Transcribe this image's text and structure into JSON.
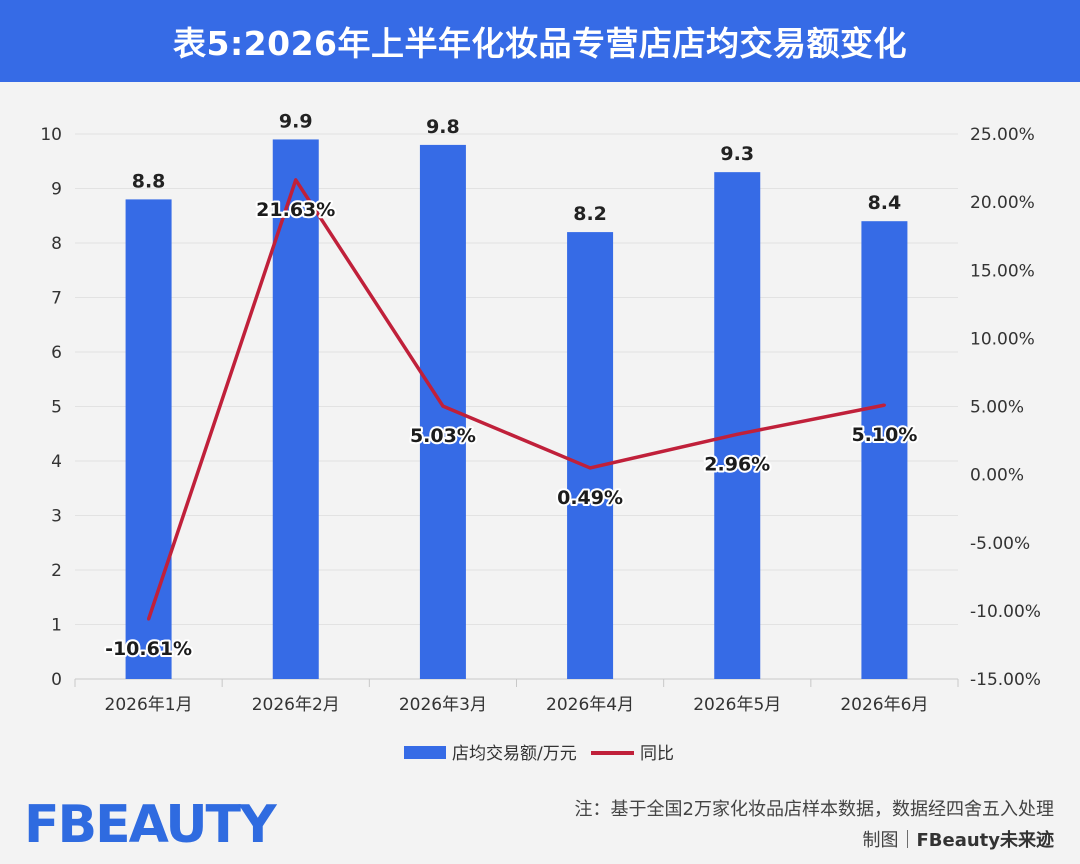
{
  "header": {
    "title": "表5:2026年上半年化妆品专营店店均交易额变化"
  },
  "colors": {
    "header_bg": "#366be6",
    "bar": "#366be6",
    "line": "#c0203a",
    "grid": "#e2e2e2",
    "logo": "#2f6be0"
  },
  "chart_data": {
    "type": "bar",
    "categories": [
      "2026年1月",
      "2026年2月",
      "2026年3月",
      "2026年4月",
      "2026年5月",
      "2026年6月"
    ],
    "series": [
      {
        "name": "店均交易额/万元",
        "type": "bar",
        "axis": "left",
        "values": [
          8.8,
          9.9,
          9.8,
          8.2,
          9.3,
          8.4
        ],
        "labels": [
          "8.8",
          "9.9",
          "9.8",
          "8.2",
          "9.3",
          "8.4"
        ]
      },
      {
        "name": "同比",
        "type": "line",
        "axis": "right",
        "values": [
          -10.61,
          21.63,
          5.03,
          0.49,
          2.96,
          5.1
        ],
        "labels": [
          "-10.61%",
          "21.63%",
          "5.03%",
          "0.49%",
          "2.96%",
          "5.10%"
        ]
      }
    ],
    "y_left": {
      "range": [
        0,
        10
      ],
      "ticks": [
        "0",
        "1",
        "2",
        "3",
        "4",
        "5",
        "6",
        "7",
        "8",
        "9",
        "10"
      ]
    },
    "y_right": {
      "range": [
        -15,
        25
      ],
      "tick_values": [
        25,
        20,
        15,
        10,
        5,
        0,
        -5,
        -10,
        -15
      ],
      "ticks": [
        "25.00%",
        "20.00%",
        "15.00%",
        "10.00%",
        "5.00%",
        "0.00%",
        "-5.00%",
        "-10.00%",
        "-15.00%"
      ]
    },
    "grid": true,
    "legend_position": "bottom"
  },
  "footer": {
    "logo_text": "FBEAUTY",
    "note": "注：基于全国2万家化妆品店样本数据，数据经四舍五入处理",
    "credit_prefix": "制图｜",
    "credit_brand": "FBeauty未来迹"
  }
}
